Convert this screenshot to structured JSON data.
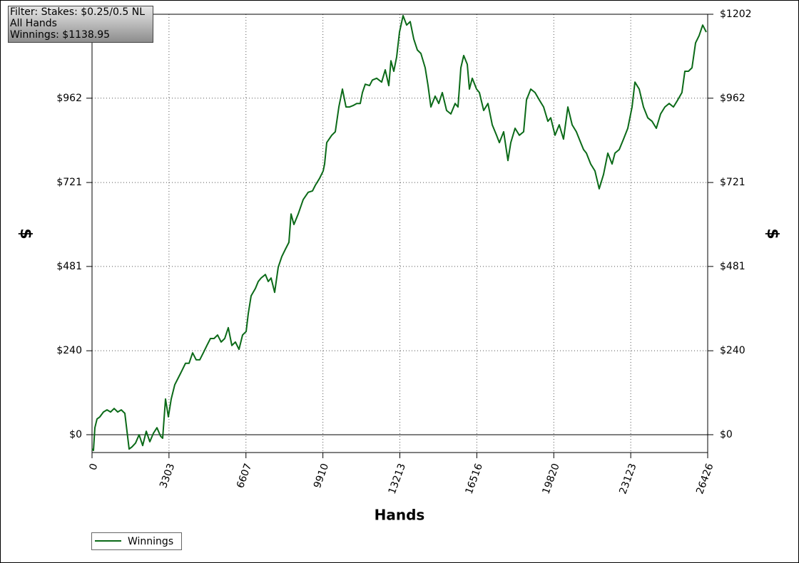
{
  "chart_data": {
    "type": "line",
    "annotations": [
      "Filter: Stakes: $0.25/0.5 NL",
      "All Hands",
      "Winnings: $1138.95"
    ],
    "xlabel": "Hands",
    "ylabel": "$",
    "y2label": "$",
    "xlim": [
      0,
      26426
    ],
    "xticks": [
      0,
      3303,
      6607,
      9910,
      13213,
      16516,
      19820,
      23123,
      26426
    ],
    "ylim": [
      -51,
      1202
    ],
    "yticks": [
      {
        "value": 0,
        "label": "$0"
      },
      {
        "value": 240,
        "label": "$240"
      },
      {
        "value": 481,
        "label": "$481"
      },
      {
        "value": 721,
        "label": "$721"
      },
      {
        "value": 962,
        "label": "$962"
      }
    ],
    "y2lim": [
      -51,
      1202
    ],
    "y2ticks": [
      {
        "value": 0,
        "label": "$0"
      },
      {
        "value": 240,
        "label": "$240"
      },
      {
        "value": 481,
        "label": "$481"
      },
      {
        "value": 721,
        "label": "$721"
      },
      {
        "value": 962,
        "label": "$962"
      },
      {
        "value": 1202,
        "label": "$1202"
      }
    ],
    "grid": true,
    "legend": "bottom-left",
    "x": [
      0,
      61,
      122,
      214,
      337,
      490,
      643,
      796,
      949,
      1102,
      1255,
      1409,
      1500,
      1592,
      1715,
      1868,
      2021,
      2174,
      2327,
      2480,
      2633,
      2786,
      2940,
      3031,
      3154,
      3276,
      3399,
      3552,
      3705,
      3858,
      4011,
      4164,
      4317,
      4471,
      4624,
      4777,
      4930,
      5083,
      5236,
      5389,
      5542,
      5695,
      5848,
      6002,
      6155,
      6308,
      6461,
      6614,
      6706,
      6828,
      7012,
      7134,
      7257,
      7440,
      7563,
      7685,
      7839,
      7992,
      8145,
      8298,
      8451,
      8543,
      8665,
      8849,
      9064,
      9278,
      9461,
      9584,
      9768,
      9921,
      9982,
      10074,
      10288,
      10441,
      10595,
      10748,
      10901,
      11054,
      11207,
      11360,
      11513,
      11605,
      11727,
      11911,
      12034,
      12217,
      12432,
      12585,
      12738,
      12830,
      12952,
      13075,
      13197,
      13350,
      13503,
      13656,
      13809,
      13963,
      14116,
      14299,
      14422,
      14544,
      14728,
      14881,
      15034,
      15218,
      15402,
      15585,
      15708,
      15830,
      15953,
      16106,
      16198,
      16320,
      16504,
      16627,
      16810,
      16994,
      17178,
      17361,
      17484,
      17668,
      17851,
      17974,
      18157,
      18341,
      18525,
      18647,
      18831,
      19015,
      19198,
      19382,
      19566,
      19688,
      19872,
      20055,
      20239,
      20423,
      20607,
      20790,
      20974,
      21097,
      21219,
      21403,
      21587,
      21770,
      21954,
      22138,
      22322,
      22444,
      22628,
      22812,
      22995,
      23179,
      23302,
      23485,
      23669,
      23853,
      24037,
      24220,
      24404,
      24588,
      24771,
      24955,
      25139,
      25322,
      25445,
      25598,
      25751,
      25904,
      26058,
      26211,
      26364
    ],
    "series": [
      {
        "name": "Winnings",
        "color": "#0b6a18",
        "values": [
          -41,
          -45,
          20,
          45,
          51,
          65,
          71,
          65,
          75,
          65,
          71,
          61,
          10,
          -41,
          -35,
          -24,
          0,
          -31,
          10,
          -20,
          4,
          20,
          -4,
          -10,
          102,
          51,
          102,
          143,
          163,
          183,
          204,
          204,
          234,
          214,
          214,
          234,
          255,
          275,
          275,
          285,
          265,
          275,
          306,
          255,
          265,
          244,
          285,
          295,
          346,
          397,
          418,
          438,
          448,
          458,
          438,
          448,
          407,
          479,
          509,
          530,
          550,
          631,
          601,
          631,
          672,
          693,
          697,
          713,
          733,
          754,
          774,
          835,
          856,
          866,
          937,
          988,
          937,
          937,
          941,
          947,
          947,
          978,
          1002,
          998,
          1014,
          1019,
          1008,
          1043,
          998,
          1069,
          1039,
          1080,
          1151,
          1198,
          1171,
          1181,
          1131,
          1100,
          1090,
          1049,
          998,
          937,
          968,
          947,
          978,
          927,
          917,
          947,
          937,
          1049,
          1084,
          1059,
          988,
          1019,
          988,
          978,
          927,
          947,
          886,
          856,
          835,
          866,
          784,
          835,
          876,
          856,
          866,
          957,
          988,
          978,
          957,
          937,
          896,
          906,
          856,
          886,
          845,
          937,
          886,
          866,
          835,
          815,
          805,
          774,
          754,
          703,
          744,
          805,
          774,
          805,
          815,
          845,
          876,
          937,
          1008,
          988,
          937,
          906,
          896,
          876,
          917,
          937,
          947,
          937,
          957,
          978,
          1039,
          1039,
          1049,
          1120,
          1141,
          1171,
          1151
        ]
      }
    ]
  }
}
